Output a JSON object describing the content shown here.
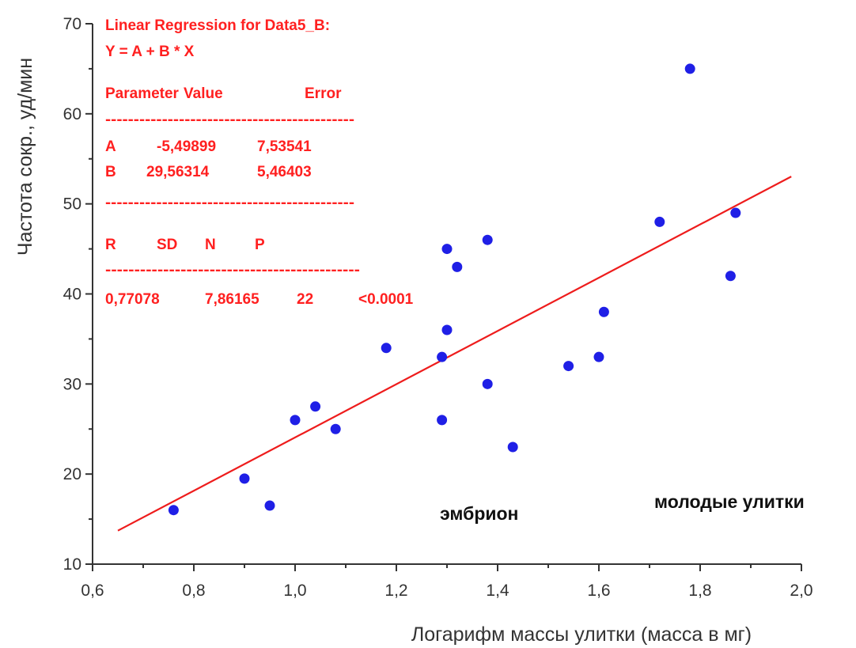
{
  "chart_data": {
    "type": "scatter",
    "xlabel": "Логарифм массы улитки (масса в мг)",
    "ylabel": "Частота сокр., уд/мин",
    "xlim": [
      0.6,
      2.0
    ],
    "ylim": [
      10,
      70
    ],
    "x_ticks": [
      "0,6",
      "0,8",
      "1,0",
      "1,2",
      "1,4",
      "1,6",
      "1,8",
      "2,0"
    ],
    "y_ticks": [
      "10",
      "20",
      "30",
      "40",
      "50",
      "60",
      "70"
    ],
    "grid": false,
    "point_color": "#1f1fe6",
    "line_color": "#ee1c1c",
    "series": [
      {
        "points": [
          {
            "x": 0.76,
            "y": 16
          },
          {
            "x": 0.9,
            "y": 19.5
          },
          {
            "x": 0.95,
            "y": 16.5
          },
          {
            "x": 1.0,
            "y": 26
          },
          {
            "x": 1.04,
            "y": 27.5
          },
          {
            "x": 1.08,
            "y": 25
          },
          {
            "x": 1.18,
            "y": 34
          },
          {
            "x": 1.29,
            "y": 33
          },
          {
            "x": 1.29,
            "y": 26
          },
          {
            "x": 1.3,
            "y": 45
          },
          {
            "x": 1.3,
            "y": 36
          },
          {
            "x": 1.32,
            "y": 43
          },
          {
            "x": 1.38,
            "y": 46
          },
          {
            "x": 1.38,
            "y": 30
          },
          {
            "x": 1.43,
            "y": 23
          },
          {
            "x": 1.54,
            "y": 32
          },
          {
            "x": 1.6,
            "y": 33
          },
          {
            "x": 1.61,
            "y": 38
          },
          {
            "x": 1.72,
            "y": 48
          },
          {
            "x": 1.78,
            "y": 65
          },
          {
            "x": 1.86,
            "y": 42
          },
          {
            "x": 1.87,
            "y": 49
          }
        ]
      }
    ],
    "fit_line": {
      "intercept": -5.49899,
      "slope": 29.56314,
      "x_range": [
        0.65,
        1.98
      ]
    },
    "regression_box": {
      "title": "Linear Regression for Data5_B:",
      "equation": "Y = A + B * X",
      "header": [
        "Parameter",
        "Value",
        "Error"
      ],
      "dashes": "--------------------------------------------",
      "rows": [
        [
          "A",
          "-5,49899",
          "7,53541"
        ],
        [
          "B",
          "29,56314",
          "5,46403"
        ]
      ],
      "stats_header": [
        "R",
        "SD",
        "N",
        "P"
      ],
      "stats_values": [
        "0,77078",
        "7,86165",
        "22",
        "<0.0001"
      ]
    },
    "annotations": [
      "эмбрион",
      "молодые улитки"
    ]
  }
}
